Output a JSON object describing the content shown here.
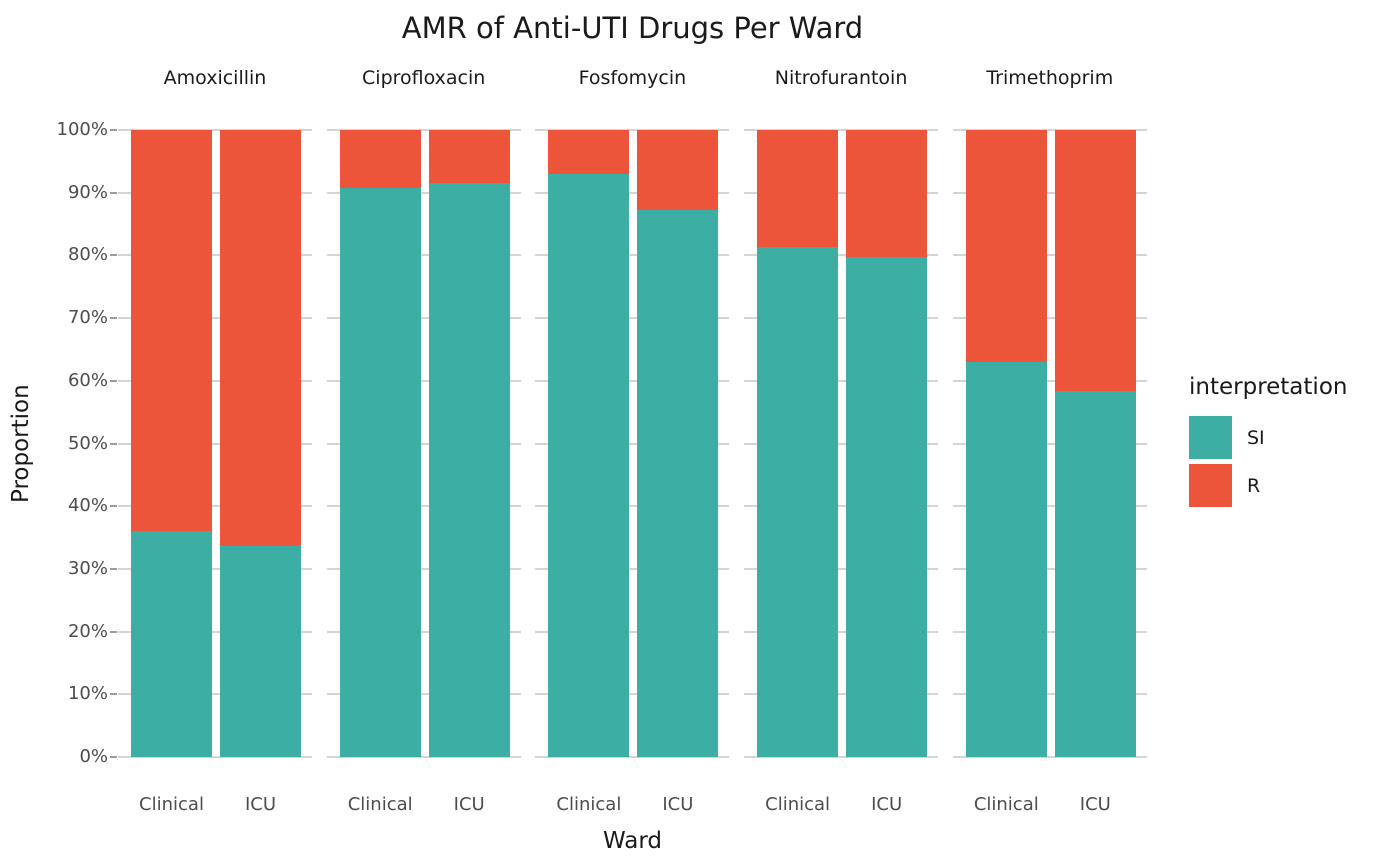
{
  "title": "AMR of Anti-UTI Drugs Per Ward",
  "axes": {
    "y_title": "Proportion",
    "x_title": "Ward",
    "y_tick_labels": [
      "0%",
      "10%",
      "20%",
      "30%",
      "40%",
      "50%",
      "60%",
      "70%",
      "80%",
      "90%",
      "100%"
    ]
  },
  "legend": {
    "title": "interpretation",
    "items": [
      {
        "name": "SI",
        "color": "#3CAEA3"
      },
      {
        "name": "R",
        "color": "#ED553B"
      }
    ]
  },
  "chart_data": {
    "type": "bar",
    "stacked": true,
    "percent": true,
    "title": "AMR of Anti-UTI Drugs Per Ward",
    "xlabel": "Ward",
    "ylabel": "Proportion",
    "ylim": [
      0,
      100
    ],
    "grid": true,
    "legend_position": "right",
    "legend_title": "interpretation",
    "categories": [
      "Clinical",
      "ICU"
    ],
    "series_names": [
      "SI",
      "R"
    ],
    "colors": {
      "SI": "#3CAEA3",
      "R": "#ED553B"
    },
    "facets": [
      {
        "name": "Amoxicillin",
        "bars": [
          {
            "ward": "Clinical",
            "SI": 36.1,
            "R": 63.9
          },
          {
            "ward": "ICU",
            "SI": 33.7,
            "R": 66.3
          }
        ]
      },
      {
        "name": "Ciprofloxacin",
        "bars": [
          {
            "ward": "Clinical",
            "SI": 90.7,
            "R": 9.3
          },
          {
            "ward": "ICU",
            "SI": 91.5,
            "R": 8.5
          }
        ]
      },
      {
        "name": "Fosfomycin",
        "bars": [
          {
            "ward": "Clinical",
            "SI": 93.0,
            "R": 7.0
          },
          {
            "ward": "ICU",
            "SI": 87.2,
            "R": 12.8
          }
        ]
      },
      {
        "name": "Nitrofurantoin",
        "bars": [
          {
            "ward": "Clinical",
            "SI": 81.3,
            "R": 18.7
          },
          {
            "ward": "ICU",
            "SI": 79.7,
            "R": 20.3
          }
        ]
      },
      {
        "name": "Trimethoprim",
        "bars": [
          {
            "ward": "Clinical",
            "SI": 63.0,
            "R": 37.0
          },
          {
            "ward": "ICU",
            "SI": 58.4,
            "R": 41.6
          }
        ]
      }
    ]
  }
}
